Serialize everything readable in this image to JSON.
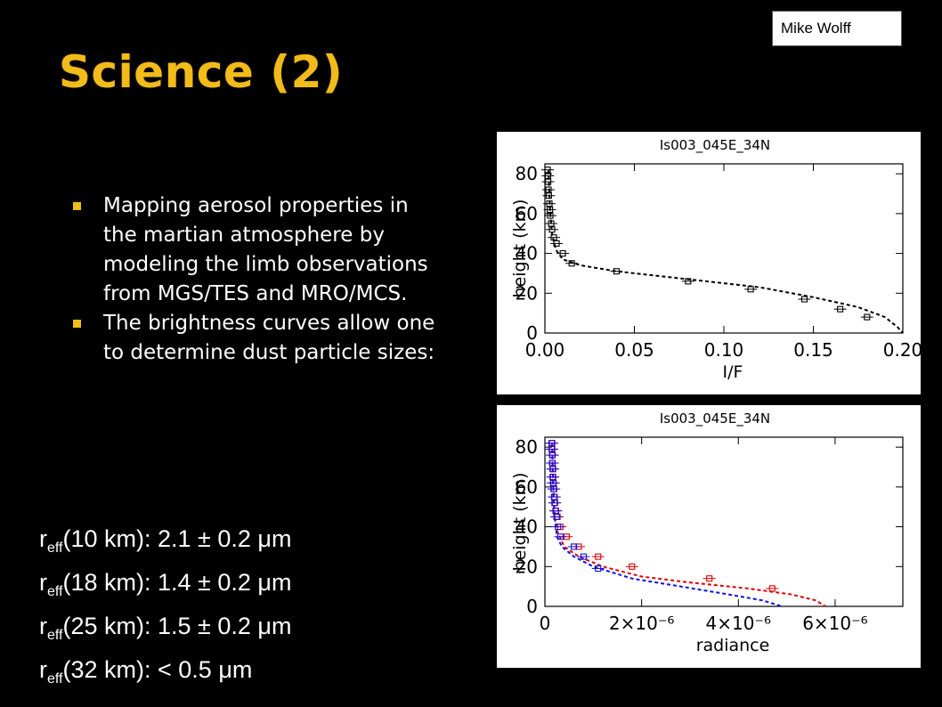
{
  "slide": {
    "title": "Science (2)",
    "author": "Mike Wolff",
    "bullets": [
      "Mapping aerosol properties in the martian atmosphere by modeling the limb observations from MGS/TES and MRO/MCS.",
      "The brightness curves allow one to determine dust particle sizes:"
    ],
    "reff": [
      {
        "r": "r",
        "sub": "eff",
        "text": "(10 km):  2.1 ± 0.2 μm"
      },
      {
        "r": "r",
        "sub": "eff",
        "text": "(18 km):  1.4 ± 0.2 μm"
      },
      {
        "r": "r",
        "sub": "eff",
        "text": "(25 km):  1.5 ± 0.2 μm"
      },
      {
        "r": "r",
        "sub": "eff",
        "text": "(32 km): < 0.5 μm"
      }
    ]
  },
  "colors": {
    "title": "#f1bc1a",
    "bullet": "#f1bc1a",
    "red_series": "#e00000",
    "blue_series": "#1010e0"
  },
  "chart_data": [
    {
      "type": "line",
      "title": "Is003_045E_34N",
      "xlabel": "I/F",
      "ylabel": "height (km)",
      "xlim": [
        0,
        0.2
      ],
      "ylim": [
        0,
        85
      ],
      "xticks": [
        "0.00",
        "0.05",
        "0.10",
        "0.15",
        "0.20"
      ],
      "yticks": [
        "0",
        "20",
        "40",
        "60",
        "80"
      ],
      "series": [
        {
          "style": "dashed-model",
          "x": [
            0.002,
            0.0025,
            0.003,
            0.004,
            0.006,
            0.01,
            0.02,
            0.04,
            0.08,
            0.12,
            0.15,
            0.175,
            0.19,
            0.197,
            0.2
          ],
          "y": [
            82,
            70,
            60,
            50,
            42,
            37,
            34,
            31,
            27,
            23,
            18,
            13,
            8,
            3,
            0
          ]
        },
        {
          "style": "observed-squares",
          "x": [
            0.0015,
            0.0017,
            0.0018,
            0.002,
            0.0022,
            0.0025,
            0.0028,
            0.003,
            0.0035,
            0.004,
            0.005,
            0.0065,
            0.01,
            0.015,
            0.04,
            0.08,
            0.115,
            0.145,
            0.165,
            0.18
          ],
          "y": [
            82,
            79,
            76,
            72,
            69,
            65,
            62,
            59,
            55,
            52,
            48,
            45,
            40,
            35,
            31,
            26,
            22,
            17,
            12,
            8
          ]
        }
      ]
    },
    {
      "type": "line",
      "title": "Is003_045E_34N",
      "xlabel": "radiance",
      "ylabel": "height (km)",
      "xlim": [
        0,
        7.4e-06
      ],
      "ylim": [
        0,
        85
      ],
      "xticks": [
        "0",
        "2×10⁻⁶",
        "4×10⁻⁶",
        "6×10⁻⁶"
      ],
      "yticks": [
        "0",
        "20",
        "40",
        "60",
        "80"
      ],
      "series": [
        {
          "color": "red",
          "x": [
            1.5e-07,
            1.6e-07,
            1.8e-07,
            2e-07,
            2.5e-07,
            4e-07,
            7e-07,
            1.2e-06,
            2e-06,
            3e-06,
            4.2e-06,
            5.1e-06,
            5.6e-06,
            5.8e-06
          ],
          "y": [
            82,
            70,
            55,
            45,
            38,
            30,
            25,
            20,
            15,
            12,
            9,
            6,
            3,
            0
          ]
        },
        {
          "color": "blue",
          "x": [
            1.5e-07,
            1.6e-07,
            1.8e-07,
            2e-07,
            2.5e-07,
            3.5e-07,
            6e-07,
            1e-06,
            1.8e-06,
            2.8e-06,
            3.8e-06,
            4.5e-06,
            4.9e-06
          ],
          "y": [
            82,
            70,
            55,
            45,
            35,
            30,
            25,
            20,
            14,
            10,
            6,
            3,
            0
          ]
        },
        {
          "color": "red",
          "style": "observed-squares",
          "x": [
            1.5e-07,
            1.5e-07,
            1.6e-07,
            1.6e-07,
            1.7e-07,
            1.7e-07,
            1.8e-07,
            1.9e-07,
            2e-07,
            2.1e-07,
            2.3e-07,
            2.6e-07,
            3.2e-07,
            4.5e-07,
            7e-07,
            1.1e-06,
            1.8e-06,
            3.4e-06,
            4.7e-06
          ],
          "y": [
            82,
            79,
            76,
            72,
            69,
            65,
            62,
            59,
            55,
            52,
            48,
            45,
            40,
            35,
            30,
            25,
            20,
            14,
            9
          ]
        },
        {
          "color": "blue",
          "style": "observed-squares",
          "x": [
            1.4e-07,
            1.4e-07,
            1.5e-07,
            1.5e-07,
            1.6e-07,
            1.6e-07,
            1.7e-07,
            1.8e-07,
            1.9e-07,
            2e-07,
            2.2e-07,
            2.4e-07,
            2.7e-07,
            3.2e-07,
            6e-07,
            8e-07,
            1.1e-06
          ],
          "y": [
            82,
            79,
            76,
            72,
            69,
            65,
            62,
            59,
            55,
            52,
            48,
            45,
            40,
            35,
            30,
            25,
            19
          ]
        }
      ]
    }
  ]
}
